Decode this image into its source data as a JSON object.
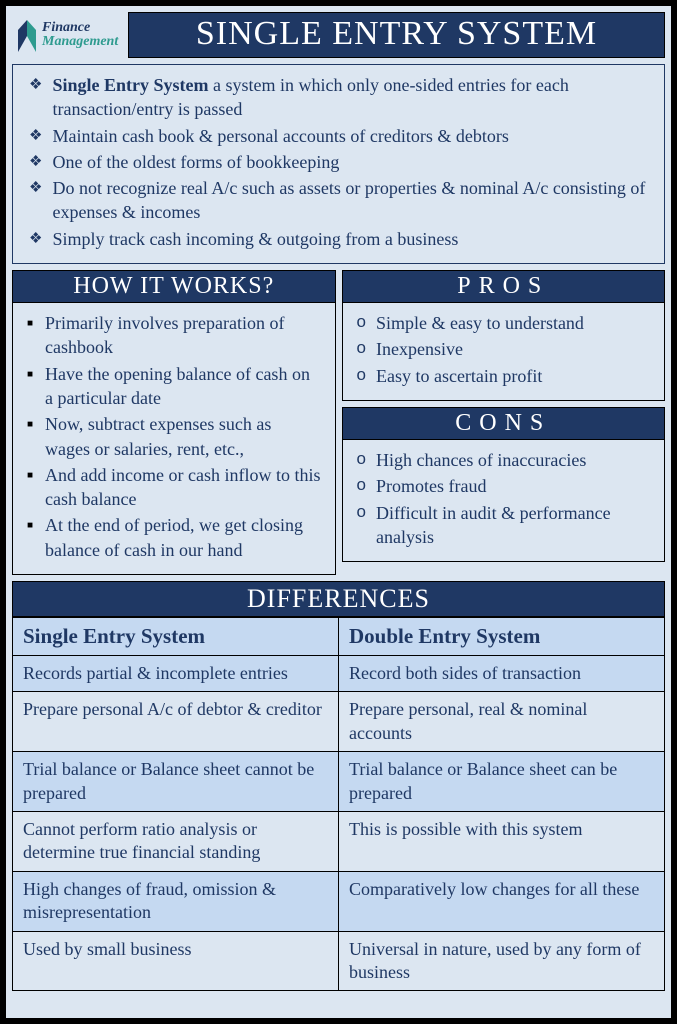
{
  "logo": {
    "line1": "Finance",
    "line2": "Management"
  },
  "title": "SINGLE ENTRY SYSTEM",
  "intro": [
    {
      "bold": "Single Entry System",
      "rest": " a system in which only one-sided entries for each transaction/entry is passed"
    },
    {
      "bold": "",
      "rest": "Maintain cash book & personal accounts of creditors & debtors"
    },
    {
      "bold": "",
      "rest": "One of the oldest forms of bookkeeping"
    },
    {
      "bold": "",
      "rest": "Do not recognize real A/c such as assets or properties & nominal A/c consisting of expenses & incomes"
    },
    {
      "bold": "",
      "rest": "Simply track cash incoming & outgoing from a business"
    }
  ],
  "how": {
    "title": "HOW IT WORKS?",
    "items": [
      "Primarily involves preparation of cashbook",
      "Have the opening balance of cash on a particular date",
      "Now, subtract expenses such as wages or salaries, rent, etc.,",
      "And add income or cash inflow to this cash balance",
      "At the end of period, we get closing balance of cash in our hand"
    ]
  },
  "pros": {
    "title": "PROS",
    "items": [
      "Simple & easy to understand",
      "Inexpensive",
      "Easy to ascertain profit"
    ]
  },
  "cons": {
    "title": "CONS",
    "items": [
      "High chances of inaccuracies",
      "Promotes fraud",
      "Difficult in audit & performance analysis"
    ]
  },
  "diff": {
    "title": "DIFFERENCES",
    "col1": "Single Entry System",
    "col2": "Double Entry System",
    "rows": [
      [
        "Records partial & incomplete entries",
        "Record both sides of transaction"
      ],
      [
        "Prepare personal A/c of debtor & creditor",
        "Prepare personal, real & nominal accounts"
      ],
      [
        "Trial balance or Balance sheet cannot be prepared",
        "Trial balance or Balance sheet can be prepared"
      ],
      [
        "Cannot perform ratio analysis or determine true financial standing",
        "This is possible with this system"
      ],
      [
        "High changes of fraud, omission & misrepresentation",
        "Comparatively low changes for all these"
      ],
      [
        "Used by small business",
        "Universal in nature, used by any form of business"
      ]
    ]
  },
  "colors": {
    "dark": "#1f3864",
    "light": "#dce6f1",
    "mid": "#c5d9f1",
    "teal": "#2e9b8f"
  }
}
